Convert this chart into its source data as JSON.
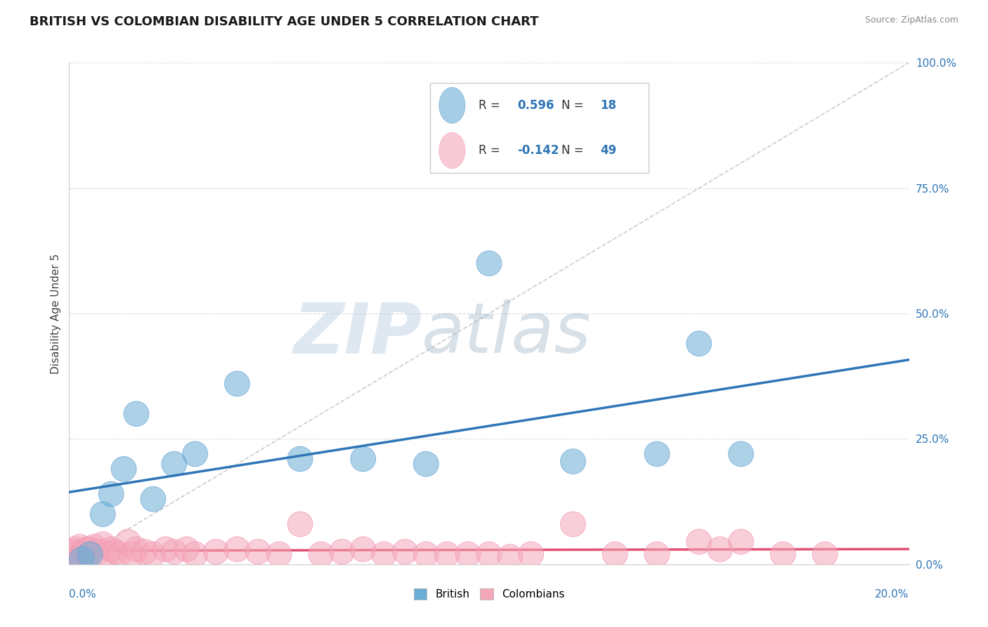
{
  "title": "BRITISH VS COLOMBIAN DISABILITY AGE UNDER 5 CORRELATION CHART",
  "source": "Source: ZipAtlas.com",
  "ylabel": "Disability Age Under 5",
  "watermark_zip": "ZIP",
  "watermark_atlas": "atlas",
  "british_R": 0.596,
  "british_N": 18,
  "colombian_R": -0.142,
  "colombian_N": 49,
  "xlim": [
    0.0,
    20.0
  ],
  "ylim": [
    0.0,
    100.0
  ],
  "yticks": [
    0.0,
    25.0,
    50.0,
    75.0,
    100.0
  ],
  "blue_color": "#6AAED6",
  "blue_color_edge": "#5B9BD5",
  "pink_color": "#F4A7B9",
  "pink_color_edge": "#F48FB1",
  "blue_line_color": "#2E75B6",
  "pink_line_color": "#E05070",
  "ref_line_color": "#C0C0C0",
  "grid_color": "#DDDDDD",
  "background_color": "#FFFFFF",
  "title_fontsize": 13,
  "axis_label_fontsize": 11,
  "tick_fontsize": 11,
  "legend_fontsize": 11,
  "british_x": [
    0.3,
    0.5,
    0.8,
    1.0,
    1.3,
    1.6,
    2.0,
    2.5,
    3.0,
    4.0,
    5.5,
    7.0,
    8.5,
    10.0,
    12.0,
    14.0,
    15.0,
    16.0
  ],
  "british_y": [
    1.0,
    2.0,
    10.0,
    14.0,
    19.0,
    30.0,
    13.0,
    20.0,
    22.0,
    36.0,
    21.0,
    21.0,
    20.0,
    60.0,
    20.5,
    22.0,
    44.0,
    22.0
  ],
  "colombian_x": [
    0.1,
    0.15,
    0.2,
    0.25,
    0.3,
    0.35,
    0.4,
    0.45,
    0.5,
    0.6,
    0.7,
    0.8,
    0.9,
    1.0,
    1.1,
    1.2,
    1.4,
    1.5,
    1.6,
    1.8,
    2.0,
    2.3,
    2.5,
    2.8,
    3.0,
    3.5,
    4.0,
    4.5,
    5.0,
    5.5,
    6.0,
    6.5,
    7.0,
    7.5,
    8.0,
    8.5,
    9.0,
    9.5,
    10.0,
    10.5,
    11.0,
    12.0,
    13.0,
    14.0,
    15.0,
    15.5,
    16.0,
    17.0,
    18.0
  ],
  "colombian_y": [
    2.5,
    3.0,
    2.0,
    3.5,
    2.0,
    2.5,
    3.0,
    2.0,
    3.0,
    3.5,
    2.5,
    4.0,
    2.0,
    3.0,
    2.5,
    2.0,
    4.5,
    2.0,
    3.0,
    2.5,
    2.0,
    3.0,
    2.5,
    3.0,
    2.0,
    2.5,
    3.0,
    2.5,
    2.0,
    8.0,
    2.0,
    2.5,
    3.0,
    2.0,
    2.5,
    2.0,
    2.0,
    2.0,
    2.0,
    1.5,
    2.0,
    8.0,
    2.0,
    2.0,
    4.5,
    3.0,
    4.5,
    2.0,
    2.0
  ]
}
